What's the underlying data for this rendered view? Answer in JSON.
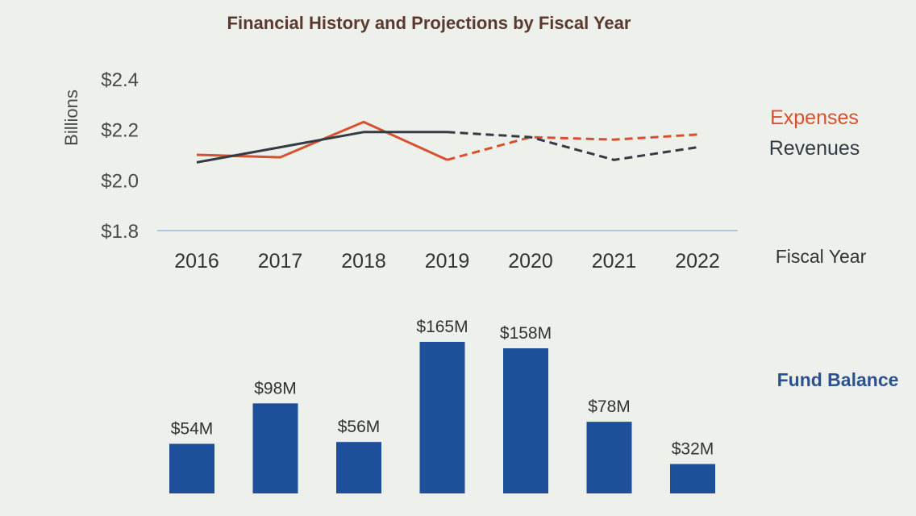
{
  "colors": {
    "expenses": "#d9502e",
    "revenues": "#333b44",
    "bars": "#1d4f9a",
    "fund_label": "#2c5191",
    "baseline": "#9fb7d3"
  },
  "chart_data": [
    {
      "type": "line",
      "title": "Financial History and Projections by Fiscal Year",
      "ylabel": "Billions",
      "xlabel": "Fiscal Year",
      "x": [
        "2016",
        "2017",
        "2018",
        "2019",
        "2020",
        "2021",
        "2022"
      ],
      "y_ticks": [
        "$2.4",
        "$2.2",
        "$2.0",
        "$1.8"
      ],
      "y_tick_values": [
        2.4,
        2.2,
        2.0,
        1.8
      ],
      "ylim": [
        1.8,
        2.4
      ],
      "projected_from": "2019",
      "legend_position": "right",
      "series": [
        {
          "name": "Expenses",
          "color": "#d9502e",
          "values": [
            2.1,
            2.09,
            2.23,
            2.08,
            2.17,
            2.16,
            2.18
          ]
        },
        {
          "name": "Revenues",
          "color": "#333b44",
          "values": [
            2.07,
            2.13,
            2.19,
            2.19,
            2.17,
            2.08,
            2.13
          ]
        }
      ]
    },
    {
      "type": "bar",
      "series_name": "Fund Balance",
      "categories": [
        "2016",
        "2017",
        "2018",
        "2019",
        "2020",
        "2021",
        "2022"
      ],
      "values": [
        54,
        98,
        56,
        165,
        158,
        78,
        32
      ],
      "labels": [
        "$54M",
        "$98M",
        "$56M",
        "$165M",
        "$158M",
        "$78M",
        "$32M"
      ],
      "color": "#1d4f9a"
    }
  ]
}
